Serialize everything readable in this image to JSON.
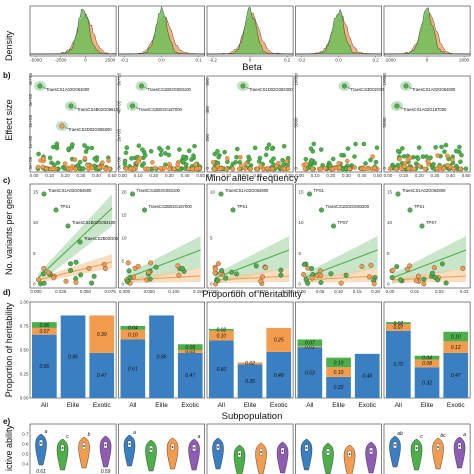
{
  "colors": {
    "green": "#4daf4a",
    "orange": "#f39c4e",
    "blue": "#3a7fc1",
    "purple": "#8e5bb5",
    "green_fill": "#6cbf5a",
    "orange_fill": "#f0a060"
  },
  "rows": {
    "a": {
      "label": "",
      "ylabel": "Density",
      "xtitle": "Beta"
    },
    "b": {
      "label": "b)",
      "ylabel": "Effect size",
      "xtitle": "Minor allele frequency"
    },
    "c": {
      "label": "c)",
      "ylabel": "No. variants per gene",
      "xtitle": "Proportion of heritability"
    },
    "d": {
      "label": "d)",
      "ylabel": "Proportion of heritability",
      "xtitle": "Subpopulation"
    },
    "e": {
      "label": "e)",
      "ylabel": "ictive ability",
      "xtitle": ""
    }
  },
  "chart_data": [
    {
      "id": "density",
      "type": "area",
      "panels": [
        {
          "xticks": [
            "-5000",
            "-2500",
            "0",
            "2500"
          ],
          "xlim": [
            -5000,
            3000
          ]
        },
        {
          "xticks": [
            "-0.1",
            "0.0",
            "0.1"
          ],
          "xlim": [
            -0.15,
            0.15
          ]
        },
        {
          "xticks": [
            "-0.2",
            "0",
            "0.2"
          ],
          "xlim": [
            -0.3,
            0.3
          ]
        },
        {
          "xticks": [
            "-0.2",
            "0.0",
            "0.2"
          ],
          "xlim": [
            -0.3,
            0.3
          ]
        },
        {
          "xticks": [
            "-2000",
            "0",
            "2000"
          ],
          "xlim": [
            -3000,
            3000
          ]
        }
      ]
    },
    {
      "id": "effect_size",
      "type": "scatter",
      "panels": [
        {
          "yticks": [
            "0e+00",
            "1e+05",
            "2e+05",
            "3e+05",
            "4e+05"
          ],
          "xticks": [
            "0.00",
            "0.10",
            "0.20",
            "0.30",
            "0.40",
            "0.50"
          ],
          "genes": [
            "TraesCS1A02G064800",
            "TraesCS4B02G066100",
            "TraesCS2D02G065800"
          ]
        },
        {
          "yticks": [
            "0e+00",
            "2e+05",
            "4e+05",
            "6e+05"
          ],
          "xticks": [
            "0.00",
            "0.10",
            "0.20",
            "0.30",
            "0.40",
            "0.50"
          ],
          "genes": [
            "TraesCS1B02G083100",
            "TraesCS2B02G187000"
          ]
        },
        {
          "yticks": [
            "0",
            "200",
            "400",
            "600"
          ],
          "xticks": [
            "0.00",
            "0.10",
            "0.20",
            "0.30",
            "0.40",
            "0.50"
          ],
          "genes": [
            "TraesCS1D02G083300"
          ]
        },
        {
          "yticks": [
            "0",
            "5000",
            "10000"
          ],
          "xticks": [
            "0.00",
            "0.10",
            "0.20",
            "0.30",
            "0.40",
            "0.50"
          ],
          "genes": [
            "TraesCS3D02G058800"
          ]
        },
        {
          "yticks": [
            "0",
            "5000",
            "10000"
          ],
          "xticks": [
            "0.00",
            "0.10",
            "0.20",
            "0.30",
            "0.40",
            "0.50"
          ],
          "genes": [
            "TraesCS1A02G064800",
            "TraesCS1A02G187000"
          ]
        }
      ]
    },
    {
      "id": "variants_per_gene",
      "type": "scatter",
      "panels": [
        {
          "yticks": [
            "0",
            "5",
            "10",
            "15"
          ],
          "xticks": [
            "0.000",
            "0.025",
            "0.050",
            "0.075"
          ],
          "genes": [
            "TraesCS1A02G064800",
            "TPS1",
            "TraesCS1B02G063100",
            "TraesCS2B02G065800"
          ]
        },
        {
          "yticks": [
            "0",
            "5",
            "10",
            "15",
            "20"
          ],
          "xticks": [
            "0.000",
            "0.050",
            "0.100",
            "0.150"
          ],
          "genes": [
            "TraesCS1B02G083100",
            "TraesCS2B02G187000"
          ]
        },
        {
          "yticks": [
            "0",
            "5",
            "10"
          ],
          "xticks": [
            "0.000",
            "0.010",
            "0.020",
            "0.030"
          ],
          "genes": [
            "TraesCS1A02G064800",
            "TPS1"
          ]
        },
        {
          "yticks": [
            "0",
            "5",
            "10",
            "15"
          ],
          "xticks": [
            "0.00",
            "0.05",
            "0.10",
            "0.15",
            "0.20"
          ],
          "genes": [
            "TPS1",
            "TraesCS1D02G083300",
            "TPS7"
          ]
        },
        {
          "yticks": [
            "0",
            "5",
            "10",
            "15"
          ],
          "xticks": [
            "0.00",
            "0.01",
            "0.02",
            "0.03"
          ],
          "genes": [
            "TraesCS1A02G064800",
            "TPS1",
            "TPS7"
          ]
        }
      ]
    },
    {
      "id": "heritability",
      "type": "bar",
      "categories": [
        "All",
        "Elite",
        "Exotic"
      ],
      "yticks": [
        "0.00",
        "0.25",
        "0.50",
        "0.75",
        "1.00"
      ],
      "ylim": [
        0,
        1
      ],
      "panels": [
        {
          "blue": [
            0.66,
            0.86,
            0.47
          ],
          "orange": [
            0.07,
            0,
            0.39
          ],
          "green": [
            0.06,
            0,
            0
          ]
        },
        {
          "blue": [
            0.61,
            0.86,
            0.47
          ],
          "orange": [
            0.1,
            0,
            0.03
          ],
          "green": [
            0.04,
            0,
            0.06
          ]
        },
        {
          "blue": [
            0.6,
            0.35,
            0.48
          ],
          "orange": [
            0.1,
            0.02,
            0.25
          ],
          "green": [
            0.02,
            0,
            0
          ]
        },
        {
          "blue": [
            0.53,
            0.22,
            0.46
          ],
          "orange": [
            0.01,
            0.1,
            0
          ],
          "green": [
            0.07,
            0.1,
            0
          ]
        },
        {
          "blue": [
            0.7,
            0.32,
            0.47
          ],
          "orange": [
            0.07,
            0.08,
            0.12
          ],
          "green": [
            0.02,
            0.04,
            0.1
          ]
        }
      ],
      "labels": [
        {
          "blue": [
            "0.66",
            "0.86",
            "0.47"
          ],
          "orange": [
            "0.07",
            "",
            "0.39"
          ],
          "green": [
            "0.06",
            "",
            ""
          ]
        },
        {
          "blue": [
            "0.61",
            "0.86",
            "0.47"
          ],
          "orange": [
            "0.10",
            "",
            "0.03"
          ],
          "green": [
            "0.04",
            "",
            "0.06"
          ]
        },
        {
          "blue": [
            "0.60",
            "0.35",
            "0.48"
          ],
          "orange": [
            "0.10",
            "0.02",
            "0.25"
          ],
          "green": [
            "0.02",
            "",
            ""
          ]
        },
        {
          "blue": [
            "0.53",
            "0.22",
            "0.46"
          ],
          "orange": [
            "0.01",
            "0.10",
            ""
          ],
          "green": [
            "0.07",
            "0.10",
            ""
          ]
        },
        {
          "blue": [
            "0.70",
            "0.32",
            "0.47"
          ],
          "orange": [
            "0.07",
            "0.08",
            "0.12"
          ],
          "green": [
            "0.02",
            "0.04",
            "0.10"
          ]
        }
      ]
    },
    {
      "id": "predictive_ability",
      "type": "violin",
      "ylim": [
        0.3,
        0.8
      ],
      "yticks": [
        "0.7",
        "0.6",
        "0.5",
        "0.4"
      ],
      "panels": [
        {
          "medians": [
            0.61,
            0.56,
            0.58,
            0.59
          ],
          "letters": [
            "a",
            "c",
            "b",
            ""
          ],
          "labels": [
            "0.61",
            "",
            "",
            "0.59"
          ]
        },
        {
          "medians": [
            0.6,
            0.55,
            0.57,
            0.56
          ],
          "letters": [
            "a",
            "",
            "",
            "a"
          ],
          "labels": [
            "",
            "",
            "",
            ""
          ]
        },
        {
          "medians": [
            0.57,
            0.5,
            0.52,
            0.53
          ],
          "letters": [
            "",
            "",
            "",
            ""
          ],
          "labels": [
            "",
            "",
            "",
            ""
          ]
        },
        {
          "medians": [
            0.56,
            0.52,
            0.5,
            0.53
          ],
          "letters": [
            "",
            "",
            "",
            ""
          ],
          "labels": [
            "",
            "",
            "",
            ""
          ]
        },
        {
          "medians": [
            0.59,
            0.56,
            0.57,
            0.58
          ],
          "letters": [
            "ab",
            "c",
            "bc",
            "a"
          ],
          "labels": [
            "",
            "",
            "",
            ""
          ]
        }
      ]
    }
  ]
}
